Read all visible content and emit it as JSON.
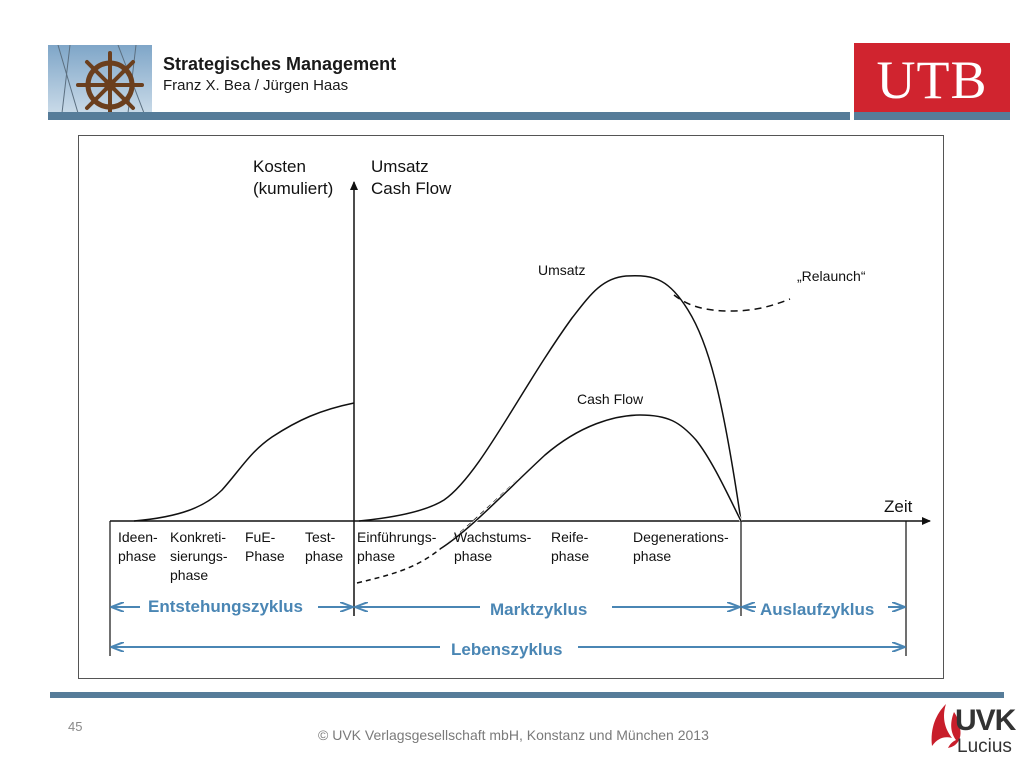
{
  "header": {
    "title": "Strategisches Management",
    "authors": "Franz X. Bea / Jürgen Haas",
    "publisher_logo": "UTB"
  },
  "diagram": {
    "y_axis_left": [
      "Kosten",
      "(kumuliert)"
    ],
    "y_axis_right": [
      "Umsatz",
      "Cash Flow"
    ],
    "x_axis": "Zeit",
    "curve_labels": {
      "umsatz": "Umsatz",
      "cash_flow": "Cash Flow",
      "relaunch": "„Relaunch“"
    },
    "phases": [
      [
        "Ideen-",
        "phase"
      ],
      [
        "Konkreti-",
        "sierungs-",
        "phase"
      ],
      [
        "FuE-",
        "Phase"
      ],
      [
        "Test-",
        "phase"
      ],
      [
        "Einführungs-",
        "phase"
      ],
      [
        "Wachstums-",
        "phase"
      ],
      [
        "Reife-",
        "phase"
      ],
      [
        "Degenerations-",
        "phase"
      ]
    ],
    "cycles": {
      "entstehung": "Entstehungszyklus",
      "markt": "Marktzyklus",
      "auslauf": "Auslaufzyklus",
      "leben": "Lebenszyklus"
    },
    "colors": {
      "cycle_arrows": "#4a86b4",
      "lines": "#111111"
    }
  },
  "footer": {
    "page_number": "45",
    "copyright": "© UVK Verlagsgesellschaft mbH, Konstanz und München 2013",
    "logo_top": "UVK",
    "logo_bottom": "Lucius"
  }
}
